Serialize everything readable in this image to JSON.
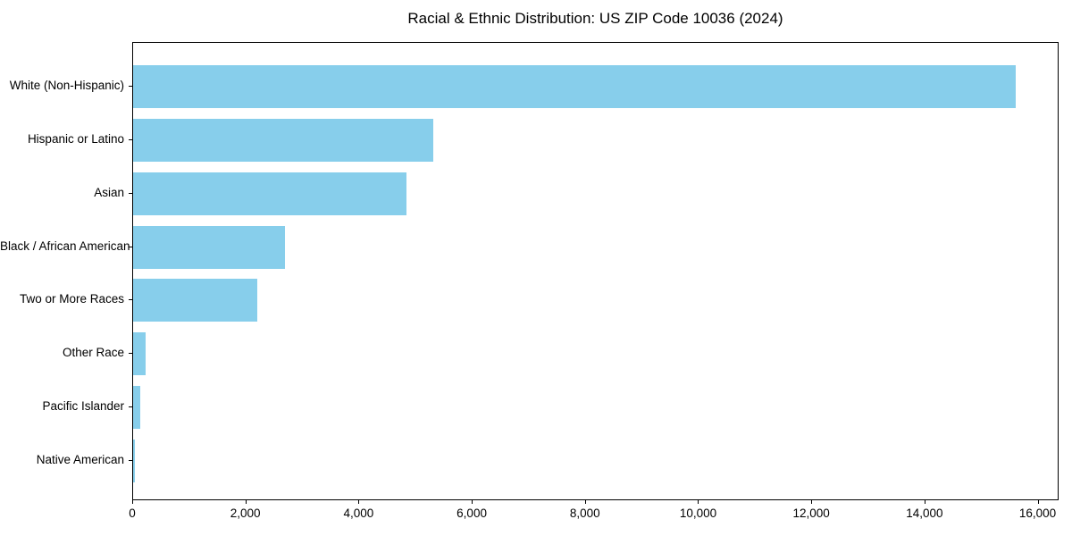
{
  "chart_data": {
    "type": "bar",
    "orientation": "horizontal",
    "title": "Racial & Ethnic Distribution: US ZIP Code 10036 (2024)",
    "categories": [
      "White (Non-Hispanic)",
      "Hispanic or Latino",
      "Asian",
      "Black / African American",
      "Two or More Races",
      "Other Race",
      "Pacific Islander",
      "Native American"
    ],
    "values": [
      15590,
      5310,
      4830,
      2680,
      2190,
      225,
      130,
      25
    ],
    "xlabel": "",
    "ylabel": "",
    "xlim": [
      0,
      16370
    ],
    "x_ticks": [
      0,
      2000,
      4000,
      6000,
      8000,
      10000,
      12000,
      14000,
      16000
    ],
    "x_tick_labels": [
      "0",
      "2,000",
      "4,000",
      "6,000",
      "8,000",
      "10,000",
      "12,000",
      "14,000",
      "16,000"
    ],
    "bar_color": "#87CEEB",
    "axis_color": "#000000",
    "grid": false,
    "legend": null
  }
}
